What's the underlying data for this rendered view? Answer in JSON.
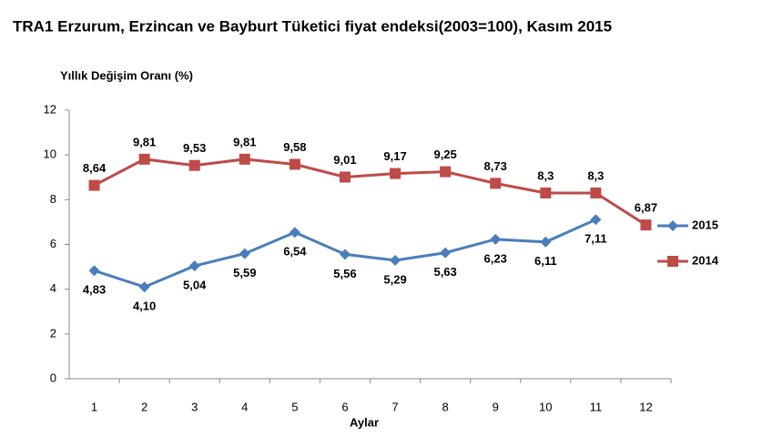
{
  "chart_data": {
    "type": "line",
    "title": "TRA1 Erzurum, Erzincan ve Bayburt Tüketici fiyat endeksi(2003=100), Kasım 2015",
    "y_label": "Yıllık Değişim Oranı (%)",
    "x_label": "Aylar",
    "categories": [
      "1",
      "2",
      "3",
      "4",
      "5",
      "6",
      "7",
      "8",
      "9",
      "10",
      "11",
      "12"
    ],
    "ylim": [
      0,
      12
    ],
    "yticks": [
      0,
      2,
      4,
      6,
      8,
      10,
      12
    ],
    "grid": false,
    "legend": "right",
    "series": [
      {
        "name": "2015",
        "color": "#4a7ebb",
        "marker": "diamond",
        "label_position": "below",
        "values": [
          4.83,
          4.1,
          5.04,
          5.59,
          6.54,
          5.56,
          5.29,
          5.63,
          6.23,
          6.11,
          7.11,
          null
        ],
        "value_labels": [
          "4,83",
          "4,10",
          "5,04",
          "5,59",
          "6,54",
          "5,56",
          "5,29",
          "5,63",
          "6,23",
          "6,11",
          "7,11",
          null
        ]
      },
      {
        "name": "2014",
        "color": "#be4b48",
        "marker": "square",
        "label_position": "above",
        "values": [
          8.64,
          9.81,
          9.53,
          9.81,
          9.58,
          9.01,
          9.17,
          9.25,
          8.73,
          8.3,
          8.3,
          6.87
        ],
        "value_labels": [
          "8,64",
          "9,81",
          "9,53",
          "9,81",
          "9,58",
          "9,01",
          "9,17",
          "9,25",
          "8,73",
          "8,3",
          "8,3",
          "6,87"
        ]
      }
    ]
  }
}
